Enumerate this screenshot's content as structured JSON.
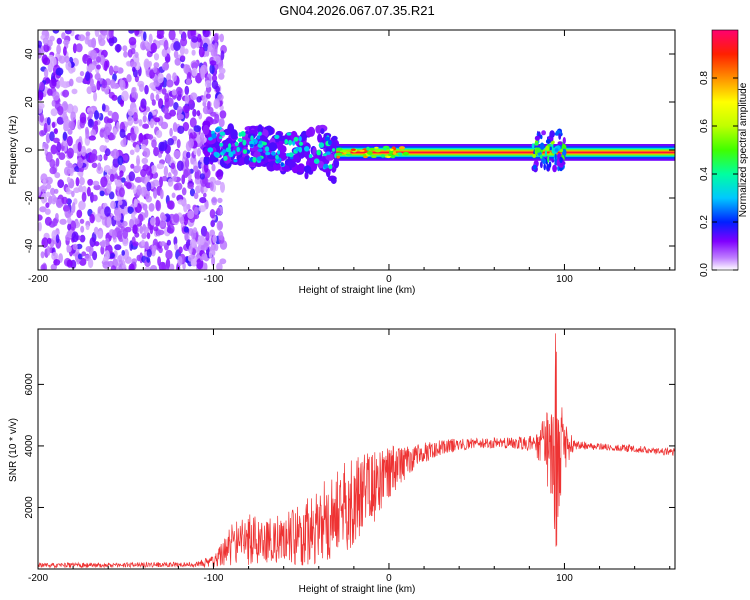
{
  "title": "GN04.2026.067.07.35.R21",
  "chart_data": [
    {
      "type": "heatmap",
      "name": "spectrogram",
      "xlabel": "Height of straight line (km)",
      "ylabel": "Frequency (Hz)",
      "xlim": [
        -200,
        163
      ],
      "ylim": [
        -50,
        50
      ],
      "x_ticks": [
        -200,
        -100,
        0,
        100
      ],
      "x_tick_labels": [
        "-200",
        "-100",
        "0",
        "100"
      ],
      "y_ticks": [
        -40,
        -20,
        0,
        20,
        40
      ],
      "y_tick_labels": [
        "-40",
        "-20",
        "0",
        "20",
        "40"
      ],
      "colorbar": {
        "label": "Normalized spectral amplitude",
        "range": [
          0,
          1
        ],
        "ticks": [
          0,
          0.2,
          0.4,
          0.6,
          0.8
        ],
        "tick_labels": [
          "0.0",
          "0.2",
          "0.4",
          "0.6",
          "0.8"
        ],
        "colors": [
          "#ffffff",
          "#a060ff",
          "#6000ff",
          "#0020ff",
          "#00c8ff",
          "#00ff60",
          "#a0ff00",
          "#ffff00",
          "#ff8000",
          "#ff0000",
          "#ff0060"
        ]
      },
      "features": [
        {
          "name": "noise region",
          "x_range": [
            -200,
            -100
          ],
          "amplitude": 0.1
        },
        {
          "name": "carrier blobs",
          "x_range": [
            -105,
            -30
          ],
          "freq_center": 0,
          "amplitude": 0.35
        },
        {
          "name": "steady carrier",
          "x_range": [
            -30,
            163
          ],
          "freq_center": -1,
          "amplitude": 0.95
        },
        {
          "name": "disturbance",
          "x_range": [
            82,
            100
          ],
          "freq_center": 0,
          "amplitude": 0.5
        }
      ]
    },
    {
      "type": "line",
      "name": "snr",
      "xlabel": "Height of straight line (km)",
      "ylabel": "SNR (10 * v/v)",
      "xlim": [
        -200,
        163
      ],
      "ylim": [
        0,
        7800
      ],
      "x_ticks": [
        -200,
        -100,
        0,
        100
      ],
      "x_tick_labels": [
        "-200",
        "-100",
        "0",
        "100"
      ],
      "y_ticks": [
        2000,
        4000,
        6000
      ],
      "y_tick_labels": [
        "2000",
        "4000",
        "6000"
      ],
      "color": "#ee3333",
      "series": [
        {
          "name": "SNR envelope",
          "x": [
            -200,
            -150,
            -110,
            -100,
            -95,
            -90,
            -80,
            -70,
            -60,
            -50,
            -40,
            -30,
            -25,
            -20,
            -10,
            0,
            10,
            20,
            30,
            40,
            50,
            60,
            70,
            80,
            85,
            90,
            93,
            95,
            97,
            100,
            105,
            110,
            120,
            130,
            140,
            150,
            163
          ],
          "mean": [
            120,
            130,
            150,
            250,
            500,
            800,
            1000,
            900,
            1000,
            1100,
            1400,
            1800,
            2000,
            2200,
            2600,
            3100,
            3500,
            3800,
            3950,
            4050,
            4080,
            4100,
            4100,
            4100,
            4050,
            4000,
            4000,
            4000,
            4000,
            4000,
            4000,
            4000,
            4000,
            3950,
            3900,
            3850,
            3800
          ],
          "amplitude": [
            80,
            80,
            80,
            200,
            400,
            700,
            900,
            700,
            800,
            1000,
            1300,
            1500,
            1500,
            1400,
            1200,
            900,
            500,
            350,
            250,
            200,
            180,
            180,
            180,
            250,
            500,
            1200,
            2500,
            3700,
            2200,
            800,
            250,
            150,
            120,
            120,
            120,
            120,
            120
          ]
        }
      ]
    }
  ]
}
